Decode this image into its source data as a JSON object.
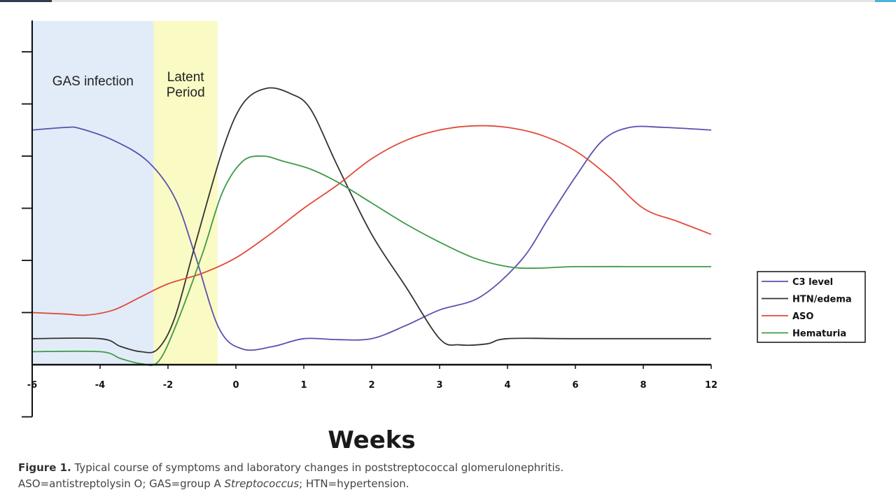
{
  "colors": {
    "gas_band": "#e2ecf8",
    "latent_band": "#fafac4",
    "axis": "#111111"
  },
  "caption": {
    "figure_label": "Figure 1.",
    "line1": "Typical course of symptoms and laboratory changes in poststreptococcal glomerulonephritis.",
    "line2_a": "ASO=antistreptolysin O; GAS=group A ",
    "line2_italic": "Streptococcus",
    "line2_b": "; HTN=hypertension."
  },
  "chart_data": {
    "type": "line",
    "xlabel": "Weeks",
    "ylabel": "",
    "x_ticks": [
      "-6",
      "-4",
      "-2",
      "0",
      "1",
      "2",
      "3",
      "4",
      "6",
      "8",
      "12"
    ],
    "y_ticks": [
      0,
      1,
      2,
      3,
      4,
      5,
      6
    ],
    "ylim": [
      -1,
      6
    ],
    "grid": false,
    "legend_position": "right",
    "bands": [
      {
        "lines": [
          "GAS infection"
        ],
        "x_start": 0.0,
        "x_end": 1.81,
        "color": "#e2ecf8"
      },
      {
        "lines": [
          "Latent",
          "Period"
        ],
        "x_start": 1.81,
        "x_end": 2.73,
        "color": "#fafac4"
      }
    ],
    "series": [
      {
        "name": "C3 level",
        "color": "#5b4fb0",
        "points": [
          [
            0,
            4.5
          ],
          [
            0.5,
            4.55
          ],
          [
            0.7,
            4.53
          ],
          [
            1.2,
            4.3
          ],
          [
            1.7,
            3.9
          ],
          [
            2.1,
            3.2
          ],
          [
            2.4,
            2.1
          ],
          [
            2.75,
            0.7
          ],
          [
            3.1,
            0.3
          ],
          [
            3.55,
            0.35
          ],
          [
            4,
            0.5
          ],
          [
            4.5,
            0.48
          ],
          [
            5,
            0.5
          ],
          [
            5.5,
            0.75
          ],
          [
            6,
            1.05
          ],
          [
            6.6,
            1.3
          ],
          [
            7.2,
            2.0
          ],
          [
            7.6,
            2.8
          ],
          [
            8,
            3.6
          ],
          [
            8.4,
            4.3
          ],
          [
            8.8,
            4.55
          ],
          [
            9.3,
            4.55
          ],
          [
            10,
            4.5
          ]
        ]
      },
      {
        "name": "HTN/edema",
        "color": "#333333",
        "points": [
          [
            0,
            0.5
          ],
          [
            1,
            0.5
          ],
          [
            1.3,
            0.35
          ],
          [
            1.6,
            0.25
          ],
          [
            1.85,
            0.3
          ],
          [
            2.1,
            0.9
          ],
          [
            2.4,
            2.3
          ],
          [
            2.8,
            4.1
          ],
          [
            3.1,
            5.0
          ],
          [
            3.45,
            5.3
          ],
          [
            3.8,
            5.2
          ],
          [
            4.1,
            4.9
          ],
          [
            4.5,
            3.8
          ],
          [
            5,
            2.5
          ],
          [
            5.5,
            1.5
          ],
          [
            6,
            0.5
          ],
          [
            6.3,
            0.38
          ],
          [
            6.7,
            0.4
          ],
          [
            7,
            0.5
          ],
          [
            8,
            0.5
          ],
          [
            10,
            0.5
          ]
        ]
      },
      {
        "name": "ASO",
        "color": "#e04a3a",
        "points": [
          [
            0,
            1.0
          ],
          [
            0.5,
            0.97
          ],
          [
            0.8,
            0.95
          ],
          [
            1.2,
            1.05
          ],
          [
            1.6,
            1.3
          ],
          [
            2.0,
            1.55
          ],
          [
            2.5,
            1.75
          ],
          [
            3.0,
            2.05
          ],
          [
            3.5,
            2.5
          ],
          [
            4,
            3.0
          ],
          [
            4.5,
            3.45
          ],
          [
            5,
            3.95
          ],
          [
            5.5,
            4.3
          ],
          [
            6,
            4.5
          ],
          [
            6.5,
            4.58
          ],
          [
            7,
            4.55
          ],
          [
            7.5,
            4.4
          ],
          [
            8,
            4.1
          ],
          [
            8.5,
            3.6
          ],
          [
            9,
            3.0
          ],
          [
            9.5,
            2.75
          ],
          [
            10,
            2.5
          ]
        ]
      },
      {
        "name": "Hematuria",
        "color": "#3c9a48",
        "points": [
          [
            0,
            0.25
          ],
          [
            1,
            0.25
          ],
          [
            1.3,
            0.12
          ],
          [
            1.6,
            0.02
          ],
          [
            1.85,
            0.05
          ],
          [
            2.1,
            0.7
          ],
          [
            2.5,
            2.1
          ],
          [
            2.8,
            3.3
          ],
          [
            3.1,
            3.9
          ],
          [
            3.4,
            4.0
          ],
          [
            3.7,
            3.9
          ],
          [
            4.1,
            3.75
          ],
          [
            4.5,
            3.5
          ],
          [
            5,
            3.1
          ],
          [
            5.5,
            2.7
          ],
          [
            6,
            2.35
          ],
          [
            6.5,
            2.05
          ],
          [
            7,
            1.88
          ],
          [
            7.4,
            1.85
          ],
          [
            8,
            1.88
          ],
          [
            9,
            1.88
          ],
          [
            10,
            1.88
          ]
        ]
      }
    ]
  }
}
